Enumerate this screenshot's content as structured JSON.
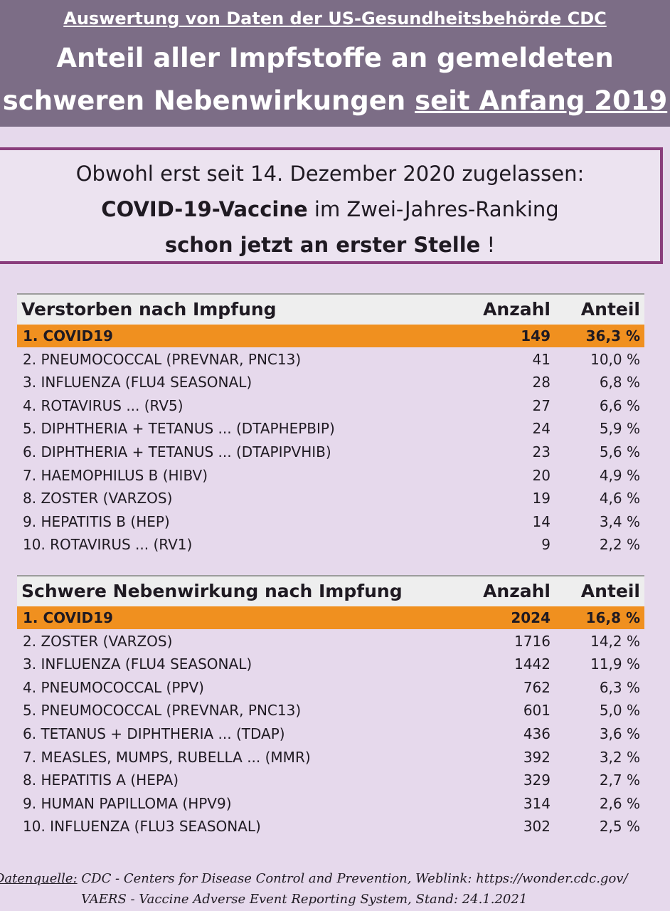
{
  "header": {
    "subtitle": "Auswertung von Daten der US-Gesundheitsbehörde CDC",
    "title_line1": "Anteil aller Impfstoffe an gemeldeten",
    "title_line2_a": "schweren Nebenwirkungen ",
    "title_line2_b": "seit Anfang 2019"
  },
  "callout": {
    "line1": "Obwohl erst seit 14. Dezember 2020 zugelassen:",
    "line2_bold": "COVID-19-Vaccine",
    "line2_rest": " im Zwei-Jahres-Ranking",
    "line3_bold": "schon jetzt an erster Stelle",
    "line3_rest": " !"
  },
  "table_deaths": {
    "label": "Verstorben nach Impfung",
    "col_count": "Anzahl",
    "col_share": "Anteil",
    "rows": [
      {
        "name": "1. COVID19",
        "count": "149",
        "share": "36,3 %"
      },
      {
        "name": "2. PNEUMOCOCCAL (PREVNAR, PNC13)",
        "count": "41",
        "share": "10,0 %"
      },
      {
        "name": "3. INFLUENZA (FLU4 SEASONAL)",
        "count": "28",
        "share": "6,8 %"
      },
      {
        "name": "4. ROTAVIRUS ... (RV5)",
        "count": "27",
        "share": "6,6 %"
      },
      {
        "name": "5. DIPHTHERIA + TETANUS ... (DTAPHEPBIP)",
        "count": "24",
        "share": "5,9 %"
      },
      {
        "name": "6. DIPHTHERIA + TETANUS ... (DTAPIPVHIB)",
        "count": "23",
        "share": "5,6 %"
      },
      {
        "name": "7. HAEMOPHILUS B  (HIBV)",
        "count": "20",
        "share": "4,9 %"
      },
      {
        "name": "8. ZOSTER (VARZOS)",
        "count": "19",
        "share": "4,6 %"
      },
      {
        "name": "9. HEPATITIS B (HEP)",
        "count": "14",
        "share": "3,4 %"
      },
      {
        "name": "10. ROTAVIRUS ... (RV1)",
        "count": "9",
        "share": "2,2 %"
      }
    ]
  },
  "table_adverse": {
    "label": "Schwere Nebenwirkung nach Impfung",
    "col_count": "Anzahl",
    "col_share": "Anteil",
    "rows": [
      {
        "name": "1. COVID19",
        "count": "2024",
        "share": "16,8 %"
      },
      {
        "name": "2. ZOSTER (VARZOS)",
        "count": "1716",
        "share": "14,2 %"
      },
      {
        "name": "3. INFLUENZA (FLU4 SEASONAL)",
        "count": "1442",
        "share": "11,9 %"
      },
      {
        "name": "4. PNEUMOCOCCAL (PPV)",
        "count": "762",
        "share": "6,3 %"
      },
      {
        "name": "5. PNEUMOCOCCAL (PREVNAR, PNC13)",
        "count": "601",
        "share": "5,0 %"
      },
      {
        "name": "6. TETANUS + DIPHTHERIA ... (TDAP)",
        "count": "436",
        "share": "3,6 %"
      },
      {
        "name": "7. MEASLES, MUMPS, RUBELLA ... (MMR)",
        "count": "392",
        "share": "3,2 %"
      },
      {
        "name": "8. HEPATITIS A (HEPA)",
        "count": "329",
        "share": "2,7 %"
      },
      {
        "name": "9. HUMAN PAPILLOMA (HPV9)",
        "count": "314",
        "share": "2,6 %"
      },
      {
        "name": "10. INFLUENZA (FLU3 SEASONAL)",
        "count": "302",
        "share": "2,5 %"
      }
    ]
  },
  "footer": {
    "source_label": "Datenquelle:",
    "line1_rest": " CDC - Centers for Disease Control and Prevention,  Weblink:  https://wonder.cdc.gov/",
    "line2": "VAERS - Vaccine Adverse Event Reporting System,  Stand:    24.1.2021"
  },
  "colors": {
    "header_bg": "#7c6d86",
    "page_bg": "#e6d9ec",
    "highlight": "#f0901f",
    "callout_border": "#8a3d7c"
  }
}
